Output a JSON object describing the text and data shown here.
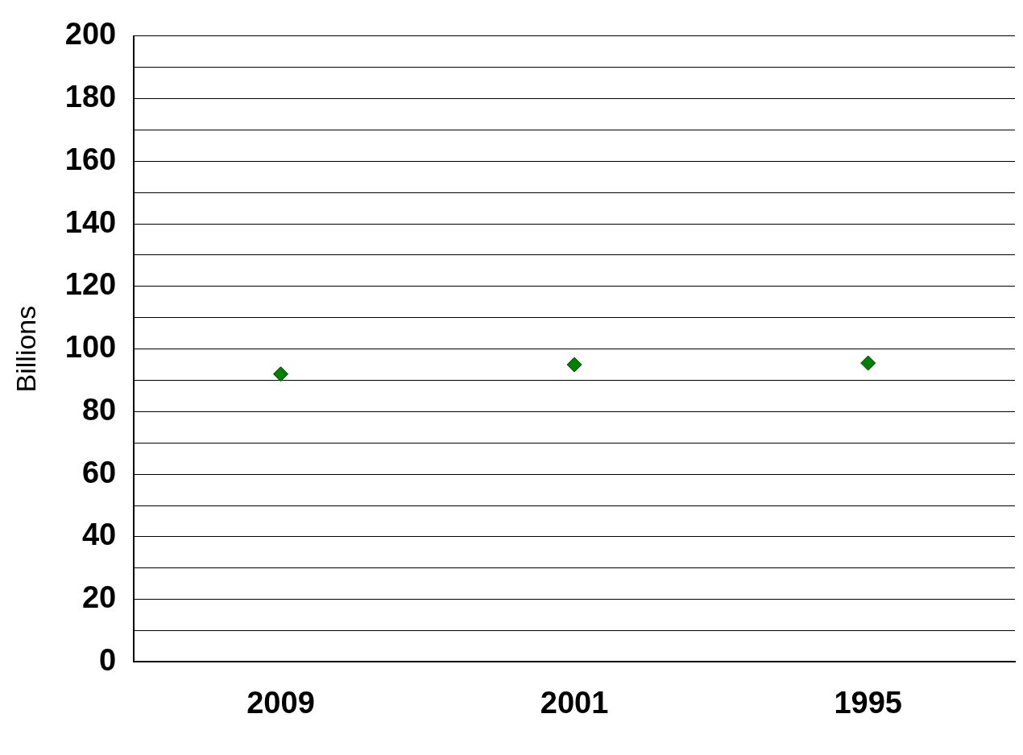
{
  "chart_data": {
    "type": "scatter",
    "ylabel": "Billions",
    "categories": [
      "2009",
      "2001",
      "1995"
    ],
    "series": [
      {
        "color": "#008000",
        "values": [
          92,
          95,
          95.5
        ]
      }
    ],
    "ylim": [
      0,
      200
    ],
    "yticks": [
      0,
      {
        "value": 10,
        "label": null
      },
      20,
      {
        "value": 30,
        "label": null
      },
      40,
      {
        "value": 50,
        "label": null
      },
      60,
      {
        "value": 70,
        "label": null
      },
      80,
      {
        "value": 90,
        "label": null
      },
      100,
      {
        "value": 110,
        "label": null
      },
      120,
      {
        "value": 130,
        "label": null
      },
      140,
      {
        "value": 150,
        "label": null
      },
      160,
      {
        "value": 170,
        "label": null
      },
      180,
      {
        "value": 190,
        "label": null
      },
      200
    ],
    "grid": "y",
    "legend": false,
    "marker": "diamond"
  }
}
